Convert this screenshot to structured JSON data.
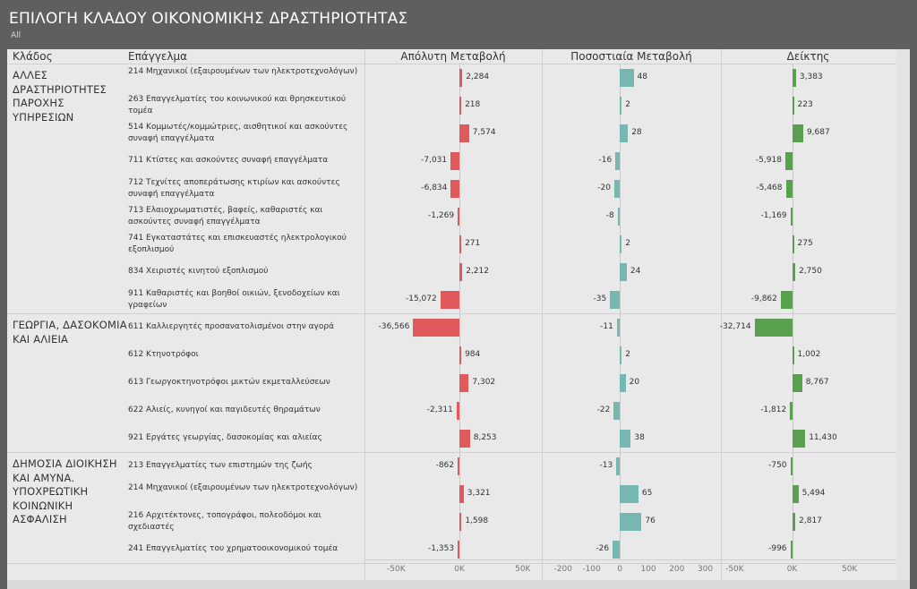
{
  "header": {
    "title": "ΕΠΙΛΟΓΗ ΚΛΑΔΟΥ ΟΙΚΟΝΟΜΙΚΗΣ ΔΡΑΣΤΗΡΙΟΤΗΤΑΣ",
    "subtitle": "All"
  },
  "colors": {
    "abs": "#e05a5c",
    "pct": "#76b7b2",
    "idx": "#59a14f"
  },
  "chart_data": {
    "type": "bar",
    "columns": [
      "Κλάδος",
      "Επάγγελμα",
      "Απόλυτη Μεταβολή",
      "Ποσοστιαία Μεταβολή",
      "Δείκτης"
    ],
    "axes": {
      "abs": {
        "range": [
          -75000,
          65000
        ],
        "ticks": [
          -50000,
          0,
          50000
        ],
        "tick_labels": [
          "-50K",
          "0K",
          "50K"
        ]
      },
      "pct": {
        "range": [
          -275,
          355
        ],
        "ticks": [
          -200,
          -100,
          0,
          100,
          200,
          300
        ],
        "tick_labels": [
          "-200",
          "-100",
          "0",
          "100",
          "200",
          "300"
        ]
      },
      "idx": {
        "range": [
          -62000,
          90000
        ],
        "ticks": [
          -50000,
          0,
          50000
        ],
        "tick_labels": [
          "-50K",
          "0K",
          "50K"
        ]
      }
    },
    "groups": [
      {
        "category": "ΑΛΛΕΣ ΔΡΑΣΤΗΡΙΟΤΗΤΕΣ ΠΑΡΟΧΗΣ ΥΠΗΡΕΣΙΩΝ",
        "rows": [
          {
            "occupation": "214 Μηχανικοί (εξαιρουμένων των ηλεκτροτεχνολόγων)",
            "abs": 2284,
            "abs_label": "2,284",
            "pct": 48,
            "pct_label": "48",
            "idx": 3383,
            "idx_label": "3,383"
          },
          {
            "occupation": "263 Επαγγελματίες του κοινωνικού και θρησκευτικού τομέα",
            "abs": 218,
            "abs_label": "218",
            "pct": 2,
            "pct_label": "2",
            "idx": 223,
            "idx_label": "223"
          },
          {
            "occupation": "514 Κομμωτές/κομμώτριες, αισθητικοί και ασκούντες συναφή επαγγέλματα",
            "abs": 7574,
            "abs_label": "7,574",
            "pct": 28,
            "pct_label": "28",
            "idx": 9687,
            "idx_label": "9,687"
          },
          {
            "occupation": "711 Κτίστες και ασκούντες συναφή επαγγέλματα",
            "abs": -7031,
            "abs_label": "-7,031",
            "pct": -16,
            "pct_label": "-16",
            "idx": -5918,
            "idx_label": "-5,918"
          },
          {
            "occupation": "712 Τεχνίτες αποπεράτωσης κτιρίων και ασκούντες συναφή επαγγέλματα",
            "abs": -6834,
            "abs_label": "-6,834",
            "pct": -20,
            "pct_label": "-20",
            "idx": -5468,
            "idx_label": "-5,468"
          },
          {
            "occupation": "713 Ελαιοχρωματιστές, βαφείς, καθαριστές και ασκούντες συναφή επαγγέλματα",
            "abs": -1269,
            "abs_label": "-1,269",
            "pct": -8,
            "pct_label": "-8",
            "idx": -1169,
            "idx_label": "-1,169"
          },
          {
            "occupation": "741 Εγκαταστάτες και επισκευαστές ηλεκτρολογικού εξοπλισμού",
            "abs": 271,
            "abs_label": "271",
            "pct": 2,
            "pct_label": "2",
            "idx": 275,
            "idx_label": "275"
          },
          {
            "occupation": "834 Χειριστές κινητού εξοπλισμού",
            "abs": 2212,
            "abs_label": "2,212",
            "pct": 24,
            "pct_label": "24",
            "idx": 2750,
            "idx_label": "2,750"
          },
          {
            "occupation": "911 Καθαριστές και βοηθοί οικιών, ξενοδοχείων και γραφείων",
            "abs": -15072,
            "abs_label": "-15,072",
            "pct": -35,
            "pct_label": "-35",
            "idx": -9862,
            "idx_label": "-9,862"
          }
        ]
      },
      {
        "category": "ΓΕΩΡΓΙΑ, ΔΑΣΟΚΟΜΙΑ ΚΑΙ ΑΛΙΕΙΑ",
        "rows": [
          {
            "occupation": "611 Καλλιεργητές προσανατολισμένοι στην αγορά",
            "abs": -36566,
            "abs_label": "-36,566",
            "pct": -11,
            "pct_label": "-11",
            "idx": -32714,
            "idx_label": "-32,714"
          },
          {
            "occupation": "612 Κτηνοτρόφοι",
            "abs": 984,
            "abs_label": "984",
            "pct": 2,
            "pct_label": "2",
            "idx": 1002,
            "idx_label": "1,002"
          },
          {
            "occupation": "613 Γεωργοκτηνοτρόφοι μικτών εκμεταλλεύσεων",
            "abs": 7302,
            "abs_label": "7,302",
            "pct": 20,
            "pct_label": "20",
            "idx": 8767,
            "idx_label": "8,767"
          },
          {
            "occupation": "622 Αλιείς, κυνηγοί και παγιδευτές θηραμάτων",
            "abs": -2311,
            "abs_label": "-2,311",
            "pct": -22,
            "pct_label": "-22",
            "idx": -1812,
            "idx_label": "-1,812"
          },
          {
            "occupation": "921 Εργάτες γεωργίας, δασοκομίας και αλιείας",
            "abs": 8253,
            "abs_label": "8,253",
            "pct": 38,
            "pct_label": "38",
            "idx": 11430,
            "idx_label": "11,430"
          }
        ]
      },
      {
        "category": "ΔΗΜΟΣΙΑ ΔΙΟΙΚΗΣΗ ΚΑΙ ΑΜΥΝΑ. ΥΠΟΧΡΕΩΤΙΚΗ ΚΟΙΝΩΝΙΚΗ ΑΣΦΑΛΙΣΗ",
        "rows": [
          {
            "occupation": "213 Επαγγελματίες των επιστημών της ζωής",
            "abs": -862,
            "abs_label": "-862",
            "pct": -13,
            "pct_label": "-13",
            "idx": -750,
            "idx_label": "-750"
          },
          {
            "occupation": "214 Μηχανικοί (εξαιρουμένων των ηλεκτροτεχνολόγων)",
            "abs": 3321,
            "abs_label": "3,321",
            "pct": 65,
            "pct_label": "65",
            "idx": 5494,
            "idx_label": "5,494"
          },
          {
            "occupation": "216 Αρχιτέκτονες, τοπογράφοι, πολεοδόμοι και σχεδιαστές",
            "abs": 1598,
            "abs_label": "1,598",
            "pct": 76,
            "pct_label": "76",
            "idx": 2817,
            "idx_label": "2,817"
          },
          {
            "occupation": "241 Επαγγελματίες του χρηματοοικονομικού τομέα",
            "abs": -1353,
            "abs_label": "-1,353",
            "pct": -26,
            "pct_label": "-26",
            "idx": -996,
            "idx_label": "-996"
          }
        ]
      }
    ]
  }
}
